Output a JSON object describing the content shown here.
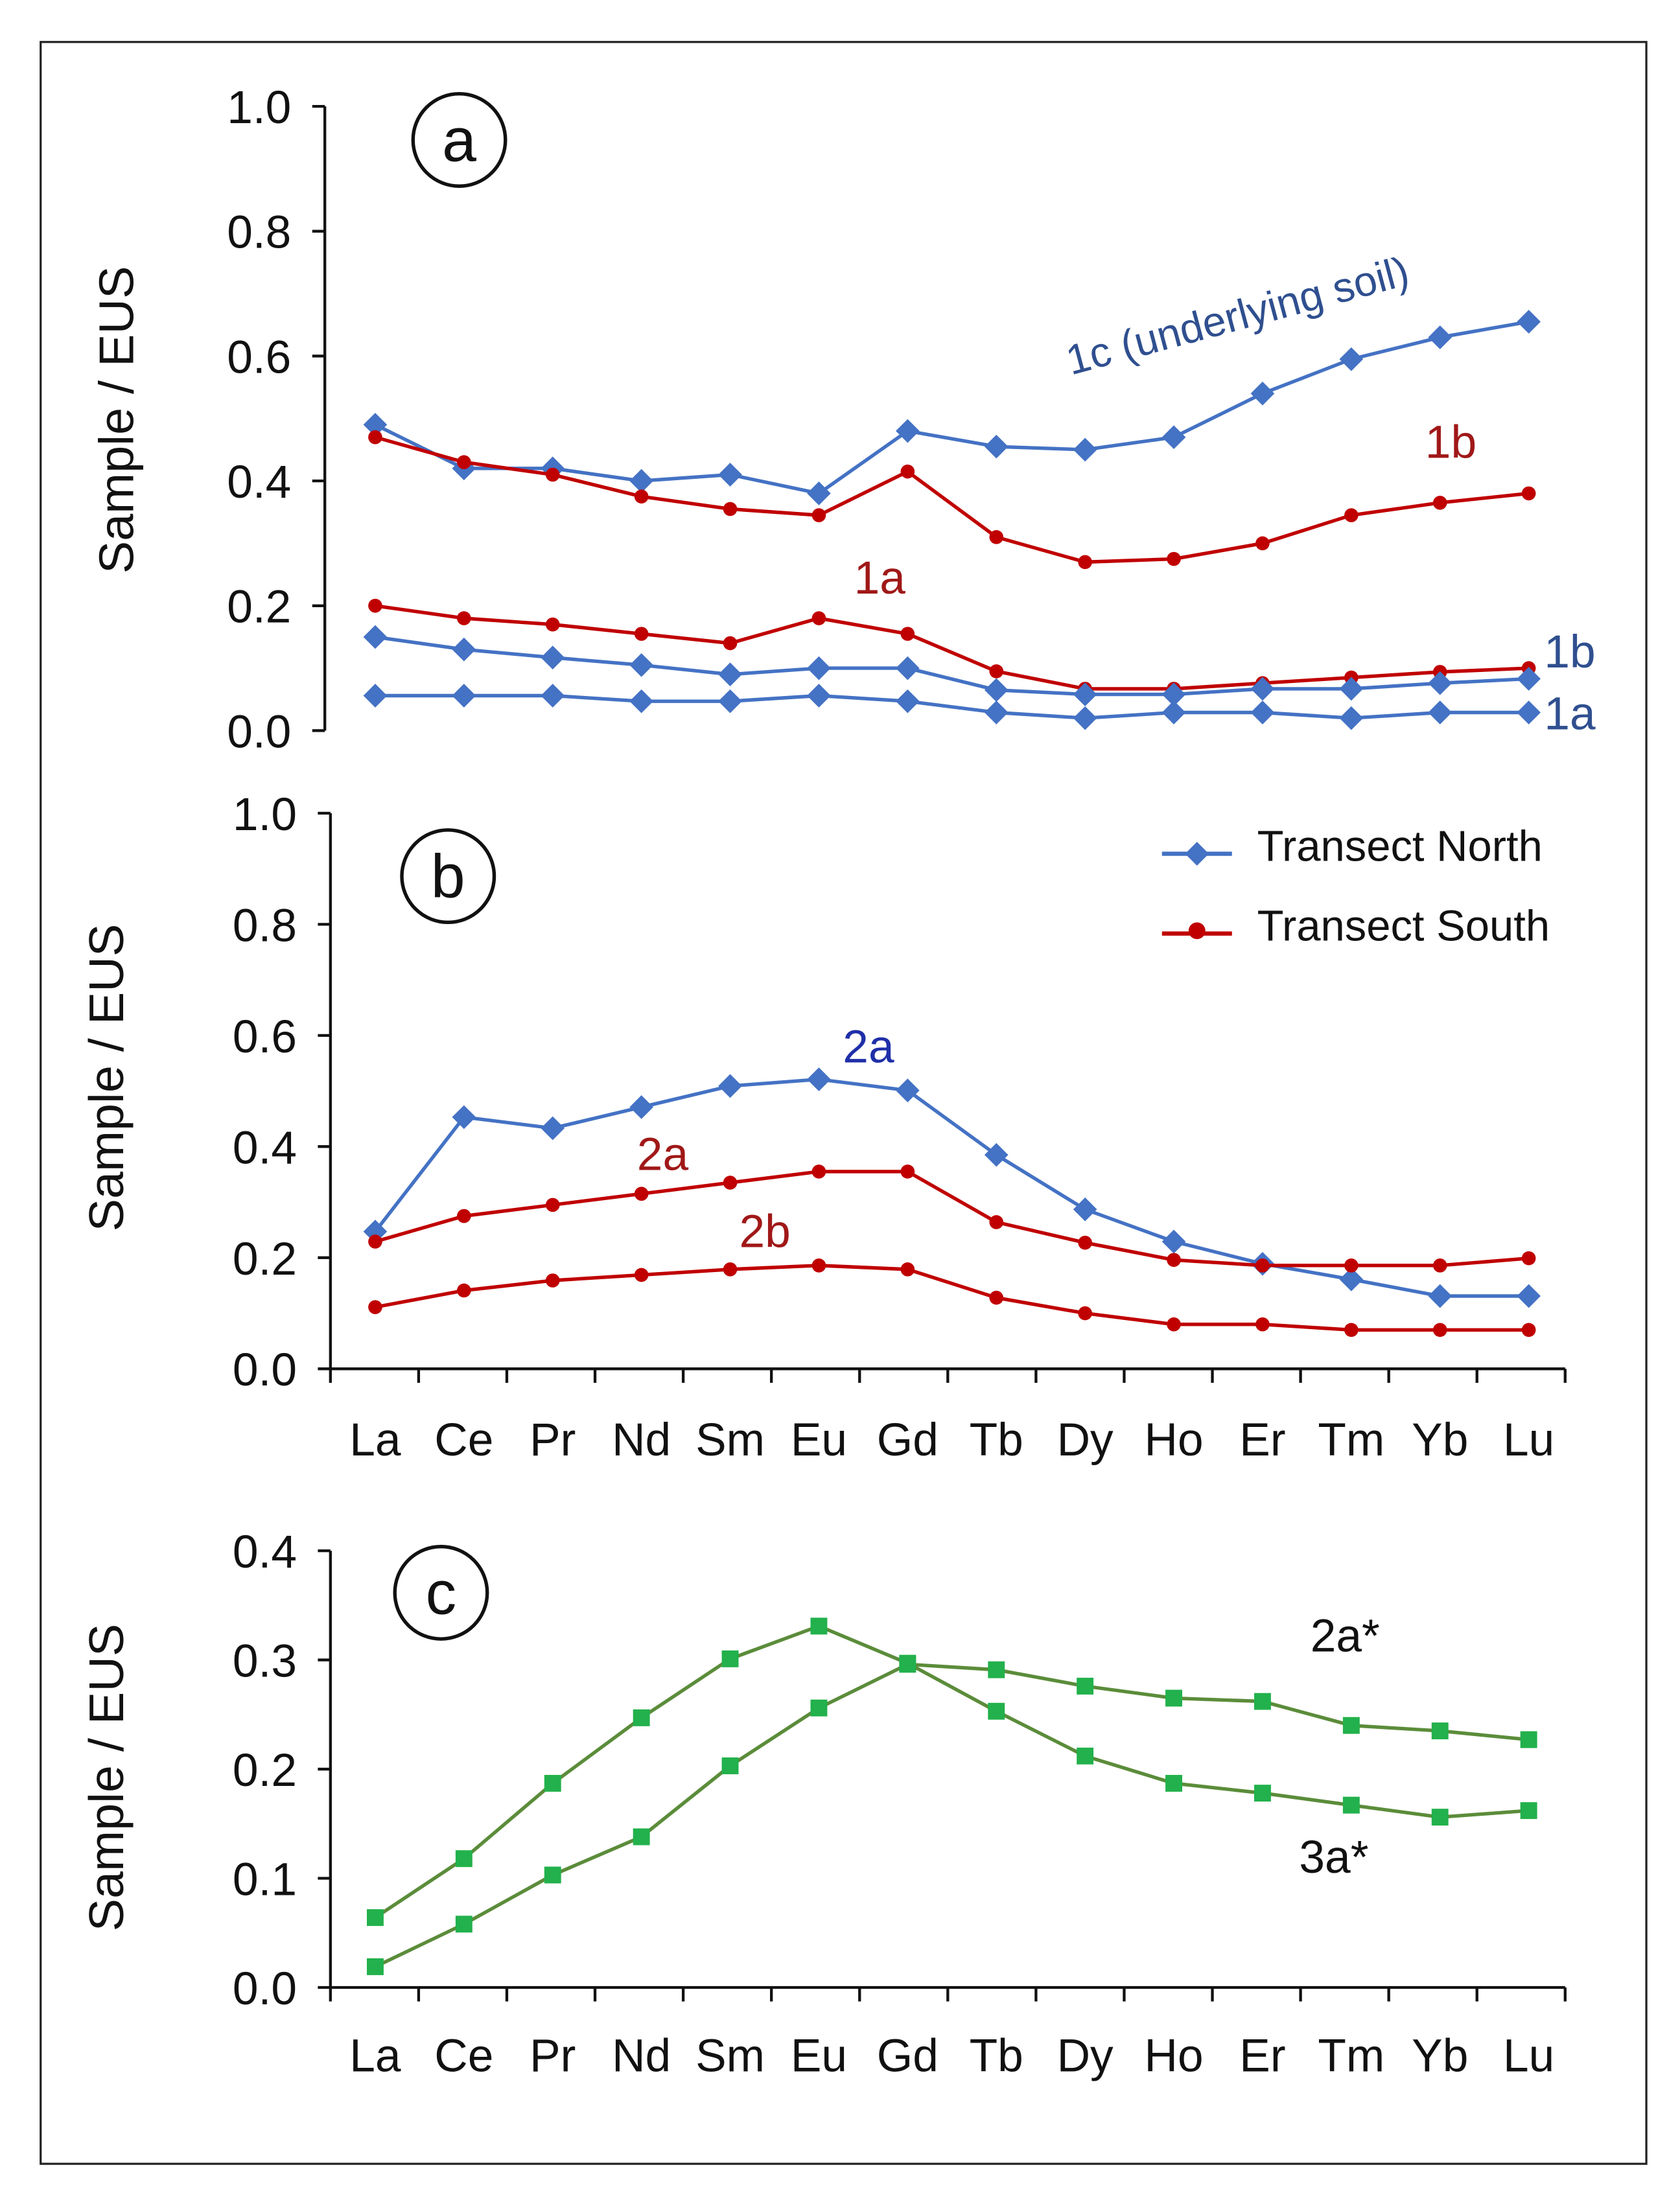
{
  "colors": {
    "north": "#4472C4",
    "south": "#C00000",
    "green_line": "#5B8C3A",
    "green_marker": "#22B14C",
    "north_label": "#2F4F8F",
    "south_label": "#A01818",
    "north_label_b": "#1F2FA8"
  },
  "chart_data": [
    {
      "type": "line",
      "panel_label": "a",
      "ylabel": "Sample / EUS",
      "ylim": [
        0,
        1.0
      ],
      "yticks": [
        "0.0",
        "0.2",
        "0.4",
        "0.6",
        "0.8",
        "1.0"
      ],
      "categories": [
        "La",
        "Ce",
        "Pr",
        "Nd",
        "Sm",
        "Eu",
        "Gd",
        "Tb",
        "Dy",
        "Ho",
        "Er",
        "Tm",
        "Yb",
        "Lu"
      ],
      "series": [
        {
          "name": "1c (underlying soil)",
          "transect": "North",
          "values": [
            0.49,
            0.42,
            0.42,
            0.4,
            0.41,
            0.38,
            0.48,
            0.455,
            0.45,
            0.47,
            0.54,
            0.595,
            0.63,
            0.655
          ]
        },
        {
          "name": "1b",
          "transect": "South",
          "values": [
            0.47,
            0.43,
            0.41,
            0.375,
            0.355,
            0.345,
            0.415,
            0.31,
            0.27,
            0.275,
            0.3,
            0.345,
            0.365,
            0.38
          ]
        },
        {
          "name": "1a",
          "transect": "South",
          "values": [
            0.2,
            0.18,
            0.17,
            0.155,
            0.14,
            0.18,
            0.155,
            0.095,
            0.067,
            0.067,
            0.076,
            0.085,
            0.094,
            0.1
          ]
        },
        {
          "name": "1b",
          "transect": "North",
          "values": [
            0.15,
            0.13,
            0.117,
            0.105,
            0.09,
            0.1,
            0.1,
            0.065,
            0.058,
            0.058,
            0.067,
            0.067,
            0.076,
            0.083
          ]
        },
        {
          "name": "1a",
          "transect": "North",
          "values": [
            0.056,
            0.056,
            0.056,
            0.047,
            0.047,
            0.056,
            0.047,
            0.029,
            0.02,
            0.029,
            0.029,
            0.02,
            0.029,
            0.029
          ]
        }
      ]
    },
    {
      "type": "line",
      "panel_label": "b",
      "ylabel": "Sample / EUS",
      "ylim": [
        0,
        1.0
      ],
      "yticks": [
        "0.0",
        "0.2",
        "0.4",
        "0.6",
        "0.8",
        "1.0"
      ],
      "categories": [
        "La",
        "Ce",
        "Pr",
        "Nd",
        "Sm",
        "Eu",
        "Gd",
        "Tb",
        "Dy",
        "Ho",
        "Er",
        "Tm",
        "Yb",
        "Lu"
      ],
      "legend": {
        "position": "top-right",
        "entries": [
          "Transect North",
          "Transect South"
        ]
      },
      "series": [
        {
          "name": "2a",
          "transect": "North",
          "values": [
            0.247,
            0.453,
            0.433,
            0.471,
            0.509,
            0.521,
            0.501,
            0.385,
            0.287,
            0.229,
            0.189,
            0.161,
            0.131,
            0.131
          ]
        },
        {
          "name": "2a",
          "transect": "South",
          "values": [
            0.229,
            0.275,
            0.295,
            0.315,
            0.335,
            0.355,
            0.355,
            0.264,
            0.227,
            0.196,
            0.186,
            0.186,
            0.186,
            0.199
          ]
        },
        {
          "name": "2b",
          "transect": "South",
          "values": [
            0.111,
            0.141,
            0.159,
            0.169,
            0.179,
            0.186,
            0.179,
            0.128,
            0.1,
            0.08,
            0.08,
            0.07,
            0.07,
            0.07
          ]
        }
      ]
    },
    {
      "type": "line",
      "panel_label": "c",
      "ylabel": "Sample / EUS",
      "ylim": [
        0,
        0.4
      ],
      "yticks": [
        "0.0",
        "0.1",
        "0.2",
        "0.3",
        "0.4"
      ],
      "categories": [
        "La",
        "Ce",
        "Pr",
        "Nd",
        "Sm",
        "Eu",
        "Gd",
        "Tb",
        "Dy",
        "Ho",
        "Er",
        "Tm",
        "Yb",
        "Lu"
      ],
      "series": [
        {
          "name": "3a*",
          "values": [
            0.064,
            0.118,
            0.187,
            0.247,
            0.301,
            0.331,
            0.297,
            0.253,
            0.212,
            0.187,
            0.178,
            0.167,
            0.156,
            0.162
          ]
        },
        {
          "name": "2a*",
          "values": [
            0.019,
            0.058,
            0.103,
            0.138,
            0.203,
            0.256,
            0.296,
            0.291,
            0.276,
            0.265,
            0.262,
            0.24,
            0.235,
            0.227
          ]
        }
      ]
    }
  ]
}
